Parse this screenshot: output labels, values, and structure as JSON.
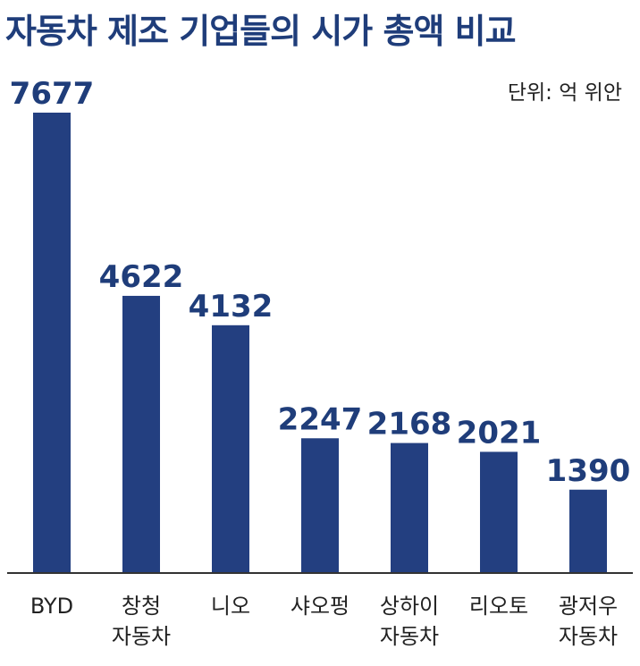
{
  "chart_data": {
    "type": "bar",
    "title": "자동차 제조 기업들의 시가 총액 비교",
    "unit_label": "단위: 억 위안",
    "categories": [
      [
        "BYD"
      ],
      [
        "창청",
        "자동차"
      ],
      [
        "니오"
      ],
      [
        "샤오펑"
      ],
      [
        "상하이",
        "자동차"
      ],
      [
        "리오토"
      ],
      [
        "광저우",
        "자동차"
      ]
    ],
    "values": [
      7677,
      4622,
      4132,
      2247,
      2168,
      2021,
      1390
    ],
    "ylim": [
      0,
      7677
    ],
    "grid": false,
    "bar_color": "#233f80",
    "axis_color": "#333333"
  }
}
